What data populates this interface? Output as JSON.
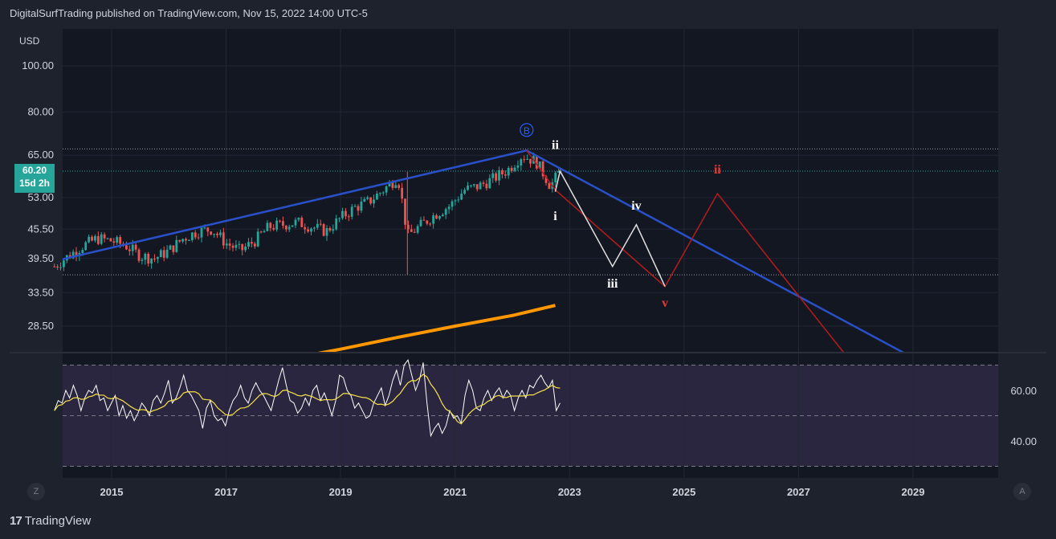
{
  "header": {
    "publisher_line": "DigitalSurfTrading published on TradingView.com, Nov 15, 2022 14:00 UTC-5"
  },
  "price_scale": {
    "currency": "USD",
    "ticks": [
      "100.00",
      "80.00",
      "65.00",
      "53.00",
      "45.50",
      "39.50",
      "33.50",
      "28.50"
    ],
    "last_price": "60.20",
    "countdown": "15d 2h"
  },
  "oscillator_scale": {
    "ticks": [
      "60.00",
      "40.00"
    ]
  },
  "time_axis": {
    "ticks": [
      "2015",
      "2017",
      "2019",
      "2021",
      "2023",
      "2025",
      "2027",
      "2029"
    ]
  },
  "buttons": {
    "left_axis": "Z",
    "right_axis": "A"
  },
  "footer": {
    "brand": "TradingView",
    "brand_mark": "17"
  },
  "colors": {
    "background": "#1e222d",
    "pane": "#131722",
    "up": "#26a69a",
    "down": "#ef5350",
    "trendline": "#2950c8",
    "ma_long": "#ff9800",
    "projection_white": "#e0e0e0",
    "projection_red": "#b71c1c",
    "rsi_line": "#ffffff",
    "rsi_ma": "#f7e24a",
    "rsi_band": "#2a2640"
  },
  "chart_data": {
    "type": "candlestick",
    "x_range": [
      "2014-01",
      "2030-06"
    ],
    "y_range": [
      24,
      110
    ],
    "scale": "log",
    "candles_weekly_close_approx": [
      [
        "2014-01",
        38.0
      ],
      [
        "2014-04",
        40.0
      ],
      [
        "2014-07",
        42.0
      ],
      [
        "2014-10",
        43.5
      ],
      [
        "2015-01",
        43.0
      ],
      [
        "2015-04",
        42.0
      ],
      [
        "2015-07",
        40.0
      ],
      [
        "2015-10",
        39.5
      ],
      [
        "2016-01",
        41.0
      ],
      [
        "2016-04",
        43.5
      ],
      [
        "2016-07",
        45.0
      ],
      [
        "2016-10",
        45.5
      ],
      [
        "2017-01",
        42.5
      ],
      [
        "2017-04",
        41.0
      ],
      [
        "2017-07",
        43.0
      ],
      [
        "2017-10",
        46.0
      ],
      [
        "2018-01",
        46.5
      ],
      [
        "2018-04",
        47.0
      ],
      [
        "2018-07",
        46.0
      ],
      [
        "2018-10",
        45.0
      ],
      [
        "2019-01",
        48.0
      ],
      [
        "2019-04",
        50.5
      ],
      [
        "2019-07",
        52.0
      ],
      [
        "2019-10",
        55.0
      ],
      [
        "2020-01",
        58.5
      ],
      [
        "2020-03",
        44.0
      ],
      [
        "2020-06",
        46.5
      ],
      [
        "2020-09",
        49.0
      ],
      [
        "2020-12",
        51.0
      ],
      [
        "2021-03",
        55.0
      ],
      [
        "2021-06",
        56.0
      ],
      [
        "2021-09",
        58.0
      ],
      [
        "2021-12",
        60.5
      ],
      [
        "2022-03",
        65.0
      ],
      [
        "2022-06",
        63.0
      ],
      [
        "2022-09",
        56.0
      ],
      [
        "2022-11",
        60.2
      ]
    ],
    "trendline": [
      [
        "2014-01",
        39.0
      ],
      [
        "2022-04",
        66.5
      ],
      [
        "2029-06",
        23.0
      ]
    ],
    "ma_long": [
      [
        "2017-01",
        23.0
      ],
      [
        "2019-01",
        25.5
      ],
      [
        "2020-01",
        27.0
      ],
      [
        "2021-01",
        28.5
      ],
      [
        "2022-01",
        30.0
      ],
      [
        "2022-10",
        31.5
      ]
    ],
    "projection_white": [
      [
        "2022-10",
        54.5
      ],
      [
        "2022-11",
        60.2
      ],
      [
        "2023-10",
        38.0
      ],
      [
        "2024-03",
        46.5
      ],
      [
        "2024-09",
        34.5
      ]
    ],
    "projection_red": [
      [
        "2022-04",
        66.5
      ],
      [
        "2022-10",
        55.0
      ],
      [
        "2024-09",
        34.5
      ],
      [
        "2025-08",
        54.0
      ],
      [
        "2028-03",
        22.0
      ]
    ],
    "wave_labels": [
      {
        "text": "B",
        "x": "2022-04",
        "y": 72.0,
        "color": "#2962ff",
        "circled": true
      },
      {
        "text": "ii",
        "x": "2022-10",
        "y": 67.0,
        "color": "#ffffff"
      },
      {
        "text": "i",
        "x": "2022-10",
        "y": 47.5,
        "color": "#ffffff"
      },
      {
        "text": "iv",
        "x": "2024-03",
        "y": 50.0,
        "color": "#ffffff"
      },
      {
        "text": "iii",
        "x": "2023-10",
        "y": 34.3,
        "color": "#ffffff"
      },
      {
        "text": "v",
        "x": "2024-09",
        "y": 31.3,
        "color": "#e53935"
      },
      {
        "text": "ii",
        "x": "2025-08",
        "y": 59.5,
        "color": "#e53935"
      }
    ],
    "horizontal_levels": [
      67.0,
      60.2,
      36.5
    ],
    "rsi": {
      "levels": [
        70,
        50,
        30
      ],
      "ylim": [
        24,
        74
      ],
      "values": [
        52,
        56,
        55,
        60,
        57,
        62,
        58,
        52,
        57,
        60,
        59,
        62,
        56,
        57,
        52,
        55,
        58,
        50,
        54,
        49,
        52,
        48,
        51,
        55,
        53,
        50,
        56,
        58,
        55,
        59,
        64,
        55,
        57,
        61,
        66,
        60,
        58,
        55,
        52,
        45,
        53,
        56,
        50,
        48,
        49,
        46,
        52,
        56,
        58,
        62,
        57,
        55,
        60,
        63,
        60,
        58,
        55,
        52,
        58,
        64,
        69,
        62,
        56,
        55,
        51,
        53,
        57,
        54,
        60,
        62,
        56,
        59,
        55,
        50,
        56,
        66,
        65,
        60,
        58,
        53,
        55,
        52,
        49,
        50,
        55,
        58,
        61,
        54,
        58,
        64,
        68,
        62,
        70,
        72,
        66,
        60,
        64,
        71,
        55,
        42,
        45,
        47,
        43,
        46,
        52,
        49,
        50,
        47,
        58,
        64,
        60,
        53,
        52,
        57,
        60,
        56,
        59,
        61,
        57,
        60,
        58,
        52,
        57,
        60,
        57,
        62,
        61,
        64,
        66,
        63,
        61,
        64,
        52,
        55
      ]
    }
  }
}
